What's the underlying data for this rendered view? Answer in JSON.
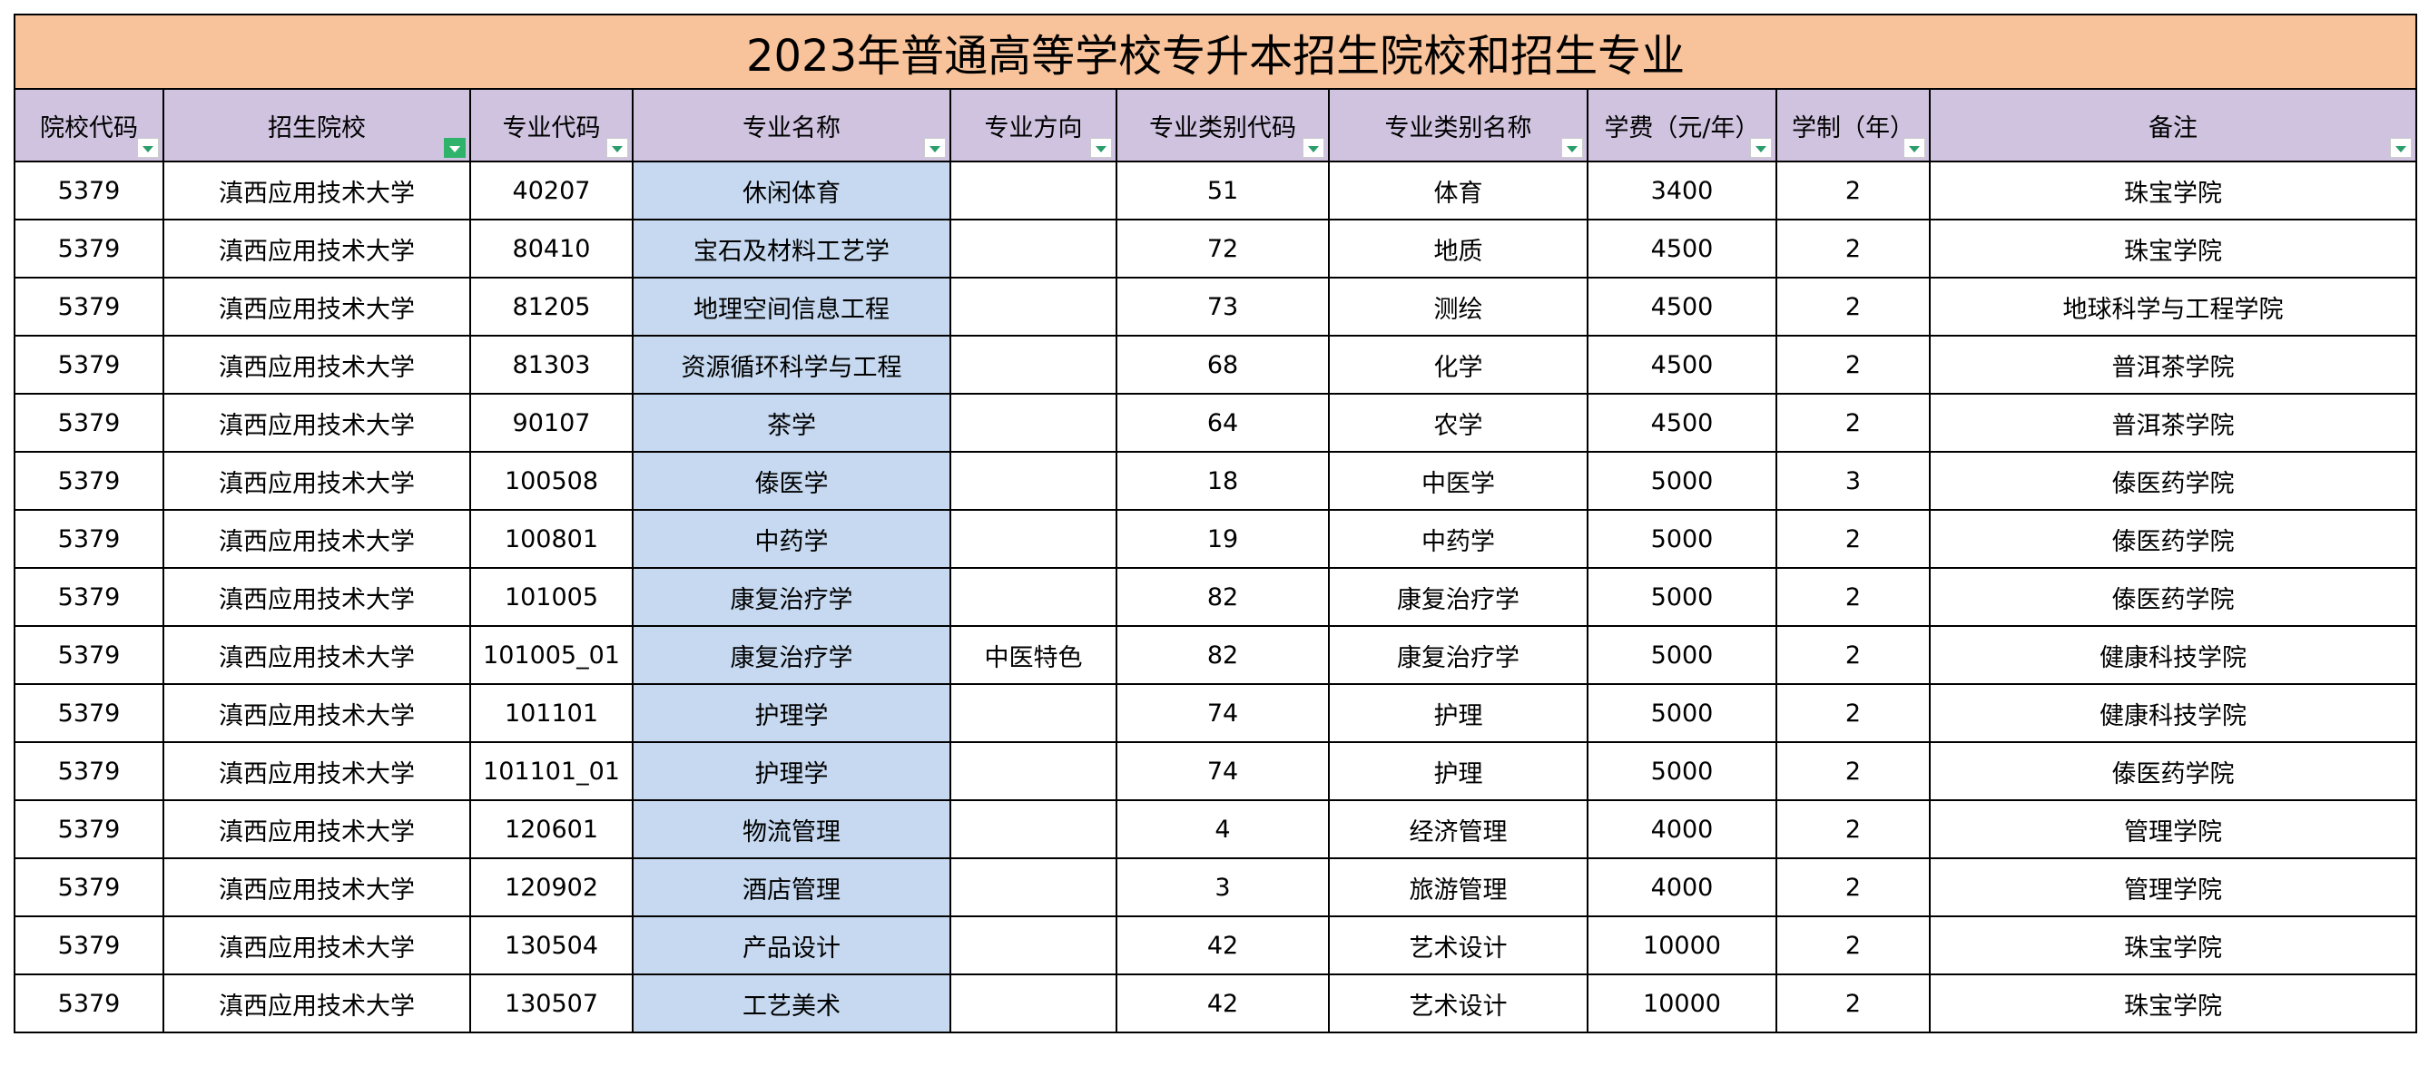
{
  "table": {
    "title": "2023年普通高等学校专升本招生院校和招生专业",
    "headers": [
      "院校代码",
      "招生院校",
      "专业代码",
      "专业名称",
      "专业方向",
      "专业类别代码",
      "专业类别名称",
      "学费（元/年）",
      "学制（年）",
      "备注"
    ],
    "rows": [
      [
        "5379",
        "滇西应用技术大学",
        "40207",
        "休闲体育",
        null,
        51,
        "体育",
        3400,
        2,
        "珠宝学院"
      ],
      [
        "5379",
        "滇西应用技术大学",
        "80410",
        "宝石及材料工艺学",
        null,
        72,
        "地质",
        4500,
        2,
        "珠宝学院"
      ],
      [
        "5379",
        "滇西应用技术大学",
        "81205",
        "地理空间信息工程",
        null,
        73,
        "测绘",
        4500,
        2,
        "地球科学与工程学院"
      ],
      [
        "5379",
        "滇西应用技术大学",
        "81303",
        "资源循环科学与工程",
        null,
        68,
        "化学",
        4500,
        2,
        "普洱茶学院"
      ],
      [
        "5379",
        "滇西应用技术大学",
        "90107",
        "茶学",
        null,
        64,
        "农学",
        4500,
        2,
        "普洱茶学院"
      ],
      [
        "5379",
        "滇西应用技术大学",
        "100508",
        "傣医学",
        null,
        18,
        "中医学",
        5000,
        3,
        "傣医药学院"
      ],
      [
        "5379",
        "滇西应用技术大学",
        "100801",
        "中药学",
        null,
        19,
        "中药学",
        5000,
        2,
        "傣医药学院"
      ],
      [
        "5379",
        "滇西应用技术大学",
        "101005",
        "康复治疗学",
        null,
        82,
        "康复治疗学",
        5000,
        2,
        "傣医药学院"
      ],
      [
        "5379",
        "滇西应用技术大学",
        "101005_01",
        "康复治疗学",
        "中医特色",
        82,
        "康复治疗学",
        5000,
        2,
        "健康科技学院"
      ],
      [
        "5379",
        "滇西应用技术大学",
        "101101",
        "护理学",
        null,
        74,
        "护理",
        5000,
        2,
        "健康科技学院"
      ],
      [
        "5379",
        "滇西应用技术大学",
        "101101_01",
        "护理学",
        null,
        74,
        "护理",
        5000,
        2,
        "傣医药学院"
      ],
      [
        "5379",
        "滇西应用技术大学",
        "120601",
        "物流管理",
        null,
        4,
        "经济管理",
        4000,
        2,
        "管理学院"
      ],
      [
        "5379",
        "滇西应用技术大学",
        "120902",
        "酒店管理",
        null,
        3,
        "旅游管理",
        4000,
        2,
        "管理学院"
      ],
      [
        "5379",
        "滇西应用技术大学",
        "130504",
        "产品设计",
        null,
        42,
        "艺术设计",
        10000,
        2,
        "珠宝学院"
      ],
      [
        "5379",
        "滇西应用技术大学",
        "130507",
        "工艺美术",
        null,
        42,
        "艺术设计",
        10000,
        2,
        "珠宝学院"
      ]
    ]
  }
}
